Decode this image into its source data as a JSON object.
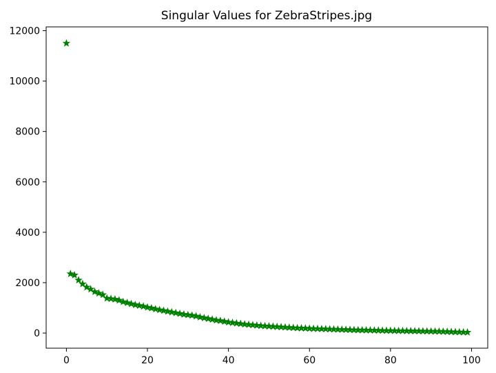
{
  "chart_data": {
    "type": "scatter",
    "title": "Singular Values for ZebraStripes.jpg",
    "xlabel": "",
    "ylabel": "",
    "xlim": [
      -5,
      104
    ],
    "ylim": [
      -600,
      12150
    ],
    "xticks": [
      0,
      20,
      40,
      60,
      80,
      100
    ],
    "yticks": [
      0,
      2000,
      4000,
      6000,
      8000,
      10000,
      12000
    ],
    "grid": false,
    "marker": "star",
    "color": "#008000",
    "series": [
      {
        "x": [
          0,
          1,
          2,
          3,
          4,
          5,
          6,
          7,
          8,
          9,
          10,
          11,
          12,
          13,
          14,
          15,
          16,
          17,
          18,
          19,
          20,
          21,
          22,
          23,
          24,
          25,
          26,
          27,
          28,
          29,
          30,
          31,
          32,
          33,
          34,
          35,
          36,
          37,
          38,
          39,
          40,
          41,
          42,
          43,
          44,
          45,
          46,
          47,
          48,
          49,
          50,
          51,
          52,
          53,
          54,
          55,
          56,
          57,
          58,
          59,
          60,
          61,
          62,
          63,
          64,
          65,
          66,
          67,
          68,
          69,
          70,
          71,
          72,
          73,
          74,
          75,
          76,
          77,
          78,
          79,
          80,
          81,
          82,
          83,
          84,
          85,
          86,
          87,
          88,
          89,
          90,
          91,
          92,
          93,
          94,
          95,
          96,
          97,
          98,
          99
        ],
        "values": [
          11500,
          2350,
          2300,
          2100,
          1950,
          1820,
          1740,
          1640,
          1580,
          1520,
          1380,
          1360,
          1340,
          1300,
          1240,
          1200,
          1160,
          1120,
          1090,
          1060,
          1020,
          990,
          950,
          920,
          890,
          860,
          830,
          800,
          770,
          740,
          720,
          700,
          670,
          630,
          600,
          570,
          540,
          510,
          490,
          460,
          430,
          410,
          390,
          370,
          350,
          335,
          320,
          305,
          290,
          280,
          270,
          260,
          250,
          240,
          230,
          220,
          210,
          200,
          195,
          190,
          180,
          175,
          170,
          165,
          160,
          155,
          150,
          145,
          140,
          135,
          130,
          125,
          120,
          118,
          115,
          112,
          108,
          105,
          100,
          98,
          95,
          92,
          90,
          88,
          85,
          82,
          80,
          78,
          75,
          72,
          70,
          67,
          64,
          60,
          55,
          50,
          45,
          40,
          35,
          30
        ]
      }
    ]
  }
}
